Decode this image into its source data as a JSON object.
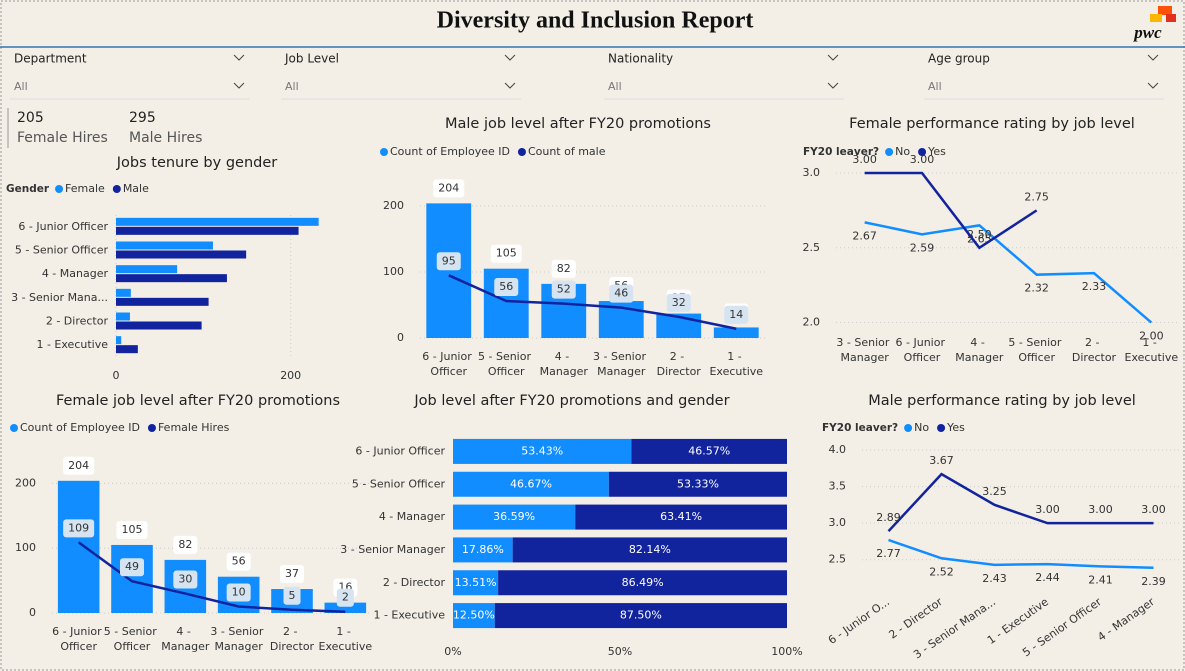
{
  "header": {
    "title": "Diversity and Inclusion Report",
    "logo": "pwc"
  },
  "filters": [
    {
      "label": "Department",
      "value": "All"
    },
    {
      "label": "Job Level",
      "value": "All"
    },
    {
      "label": "Nationality",
      "value": "All"
    },
    {
      "label": "Age group",
      "value": "All"
    }
  ],
  "cards": [
    {
      "value": 205,
      "label": "Female Hires"
    },
    {
      "value": 295,
      "label": "Male Hires"
    }
  ],
  "chart_data": [
    {
      "type": "barh",
      "title": "Jobs tenure by gender",
      "legend_title": "Gender",
      "categories": [
        "6 - Junior Officer",
        "5 - Senior Officer",
        "4 - Manager",
        "3 - Senior Mana...",
        "2 - Director",
        "1 - Executive"
      ],
      "series": [
        {
          "name": "Female",
          "color": "#118dff",
          "values": [
            232,
            111,
            70,
            17,
            16,
            6
          ]
        },
        {
          "name": "Male",
          "color": "#12239e",
          "values": [
            209,
            149,
            127,
            106,
            98,
            25
          ]
        }
      ],
      "xlim": [
        0,
        245
      ],
      "xticks": [
        0,
        200
      ],
      "grid": true
    },
    {
      "type": "combo",
      "title": "Male job level after FY20 promotions",
      "categories": [
        "6 - Junior Officer",
        "5 - Senior Officer",
        "4 - Manager",
        "3 - Senior Manager",
        "2 - Director",
        "1 - Executive"
      ],
      "series": [
        {
          "name": "Count of Employee ID",
          "mark": "bar",
          "color": "#118dff",
          "values": [
            204,
            105,
            82,
            56,
            37,
            16
          ]
        },
        {
          "name": "Count of male",
          "mark": "line",
          "color": "#12239e",
          "values": [
            95,
            56,
            52,
            46,
            32,
            14
          ]
        }
      ],
      "ylim": [
        0,
        250
      ],
      "yticks": [
        0,
        100,
        200
      ],
      "grid": true
    },
    {
      "type": "line",
      "title": "Female performance rating by job level",
      "legend_title": "FY20 leaver?",
      "categories": [
        "3 - Senior Manager",
        "6 - Junior Officer",
        "4 - Manager",
        "5 - Senior Officer",
        "2 - Director",
        "1 - Executive"
      ],
      "series": [
        {
          "name": "No",
          "color": "#118dff",
          "values": [
            2.67,
            2.59,
            2.65,
            2.32,
            2.33,
            2.0
          ],
          "value_labels": [
            "2.67",
            "2.59",
            "2.65",
            "2.32",
            "2.33",
            "2.00"
          ]
        },
        {
          "name": "Yes",
          "color": "#12239e",
          "values": [
            3.0,
            3.0,
            2.5,
            2.75,
            null,
            null
          ],
          "value_labels": [
            "3.00",
            "3.00",
            "2.50",
            "2.75",
            null,
            null
          ]
        }
      ],
      "ylim": [
        1.95,
        3.0
      ],
      "yticks": [
        {
          "value": 3,
          "label": "3.0"
        },
        2.5,
        {
          "value": 2,
          "label": "2.0"
        }
      ],
      "grid": true
    },
    {
      "type": "combo",
      "title": "Female job level after FY20 promotions",
      "categories": [
        "6 - Junior Officer",
        "5 - Senior Officer",
        "4 - Manager",
        "3 - Senior Manager",
        "2 - Director",
        "1 - Executive"
      ],
      "series": [
        {
          "name": "Count of Employee ID",
          "mark": "bar",
          "color": "#118dff",
          "values": [
            204,
            105,
            82,
            56,
            37,
            16
          ]
        },
        {
          "name": "Female Hires",
          "mark": "line",
          "color": "#12239e",
          "values": [
            109,
            49,
            30,
            10,
            5,
            2
          ]
        }
      ],
      "ylim": [
        0,
        250
      ],
      "yticks": [
        0,
        100,
        200
      ],
      "grid": true
    },
    {
      "type": "stacked100",
      "title": "Job level after FY20 promotions and gender",
      "categories": [
        "6 - Junior Officer",
        "5 - Senior Officer",
        "4 - Manager",
        "3 - Senior Manager",
        "2 - Director",
        "1 - Executive"
      ],
      "series": [
        {
          "color": "#118dff",
          "values": [
            53.43,
            46.67,
            36.59,
            17.86,
            13.51,
            12.5
          ],
          "value_labels": [
            "53.43%",
            "46.67%",
            "36.59%",
            "17.86%",
            "13.51%",
            "12.50%"
          ]
        },
        {
          "color": "#12239e",
          "values": [
            46.57,
            53.33,
            63.41,
            82.14,
            86.49,
            87.5
          ],
          "value_labels": [
            "46.57%",
            "53.33%",
            "63.41%",
            "82.14%",
            "86.49%",
            "87.50%"
          ]
        }
      ],
      "xlim": [
        0,
        100
      ],
      "xticks": [
        {
          "value": 0,
          "label": "0%"
        },
        {
          "value": 50,
          "label": "50%"
        },
        {
          "value": 100,
          "label": "100%"
        }
      ]
    },
    {
      "type": "line",
      "title": "Male performance rating by job level",
      "legend_title": "FY20 leaver?",
      "categories": [
        "6 - Junior O...",
        "2 - Director",
        "3 - Senior Mana...",
        "1 - Executive",
        "5 - Senior Officer",
        "4 - Manager"
      ],
      "series": [
        {
          "name": "No",
          "color": "#118dff",
          "values": [
            2.77,
            2.52,
            2.43,
            2.44,
            2.41,
            2.39
          ],
          "value_labels": [
            "2.77",
            "2.52",
            "2.43",
            "2.44",
            "2.41",
            "2.39"
          ]
        },
        {
          "name": "Yes",
          "color": "#12239e",
          "values": [
            2.89,
            3.67,
            3.25,
            3.0,
            3.0,
            3.0
          ],
          "value_labels": [
            "2.89",
            "3.67",
            "3.25",
            "3.00",
            "3.00",
            "3.00"
          ]
        }
      ],
      "ylim": [
        2.1,
        4.0
      ],
      "yticks": [
        {
          "value": 4,
          "label": "4.0"
        },
        3.5,
        {
          "value": 3,
          "label": "3.0"
        },
        2.5
      ],
      "grid": true,
      "rotate_labels": true
    }
  ]
}
